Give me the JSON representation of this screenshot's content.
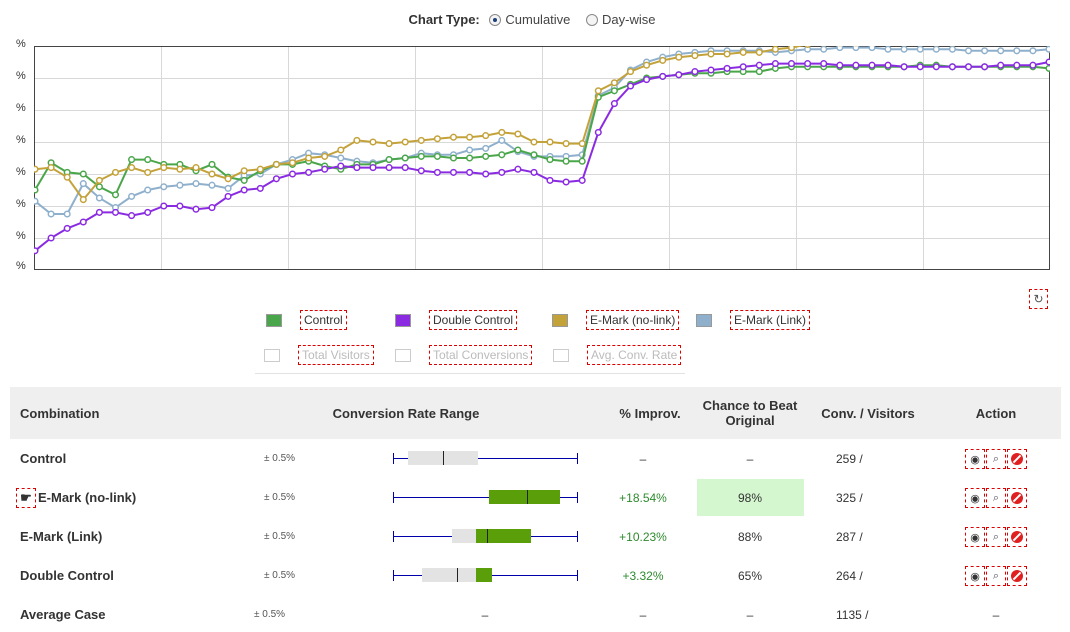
{
  "chart_type": {
    "label": "Chart Type:",
    "options": [
      {
        "label": "Cumulative",
        "selected": true
      },
      {
        "label": "Day-wise",
        "selected": false
      }
    ]
  },
  "chart_data": {
    "type": "line",
    "y_tick_labels": [
      "%",
      "%",
      "%",
      "%",
      "%",
      "%",
      "%",
      "%"
    ],
    "ylim": [
      0,
      7
    ],
    "grid": true,
    "series": [
      {
        "name": "Control",
        "color": "#4aa64a",
        "values": [
          2.5,
          3.35,
          3.05,
          3.0,
          2.6,
          2.35,
          3.45,
          3.45,
          3.3,
          3.3,
          3.1,
          3.3,
          2.9,
          2.8,
          3.1,
          3.3,
          3.3,
          3.4,
          3.25,
          3.15,
          3.3,
          3.3,
          3.45,
          3.5,
          3.55,
          3.55,
          3.5,
          3.5,
          3.55,
          3.6,
          3.75,
          3.6,
          3.45,
          3.4,
          3.4,
          5.4,
          5.6,
          5.8,
          6.0,
          6.05,
          6.1,
          6.15,
          6.15,
          6.2,
          6.2,
          6.2,
          6.3,
          6.35,
          6.35,
          6.35,
          6.35,
          6.35,
          6.35,
          6.35,
          6.35,
          6.4,
          6.4,
          6.35,
          6.35,
          6.35,
          6.35,
          6.35,
          6.35,
          6.3
        ]
      },
      {
        "name": "Double Control",
        "color": "#8a2be2",
        "values": [
          0.6,
          1.0,
          1.3,
          1.5,
          1.8,
          1.8,
          1.7,
          1.8,
          2.0,
          2.0,
          1.9,
          1.95,
          2.3,
          2.5,
          2.55,
          2.85,
          3.0,
          3.05,
          3.15,
          3.25,
          3.2,
          3.2,
          3.2,
          3.2,
          3.1,
          3.05,
          3.05,
          3.05,
          3.0,
          3.05,
          3.15,
          3.05,
          2.8,
          2.75,
          2.8,
          4.3,
          5.2,
          5.75,
          5.95,
          6.05,
          6.1,
          6.2,
          6.25,
          6.3,
          6.35,
          6.4,
          6.45,
          6.45,
          6.45,
          6.45,
          6.4,
          6.4,
          6.4,
          6.4,
          6.35,
          6.35,
          6.35,
          6.35,
          6.35,
          6.35,
          6.4,
          6.4,
          6.4,
          6.5
        ]
      },
      {
        "name": "E-Mark (no-link)",
        "color": "#c4a23a",
        "values": [
          3.15,
          3.2,
          2.9,
          2.2,
          2.8,
          3.05,
          3.2,
          3.05,
          3.2,
          3.15,
          3.2,
          3.0,
          2.85,
          3.1,
          3.15,
          3.3,
          3.35,
          3.5,
          3.55,
          3.75,
          4.05,
          4.0,
          3.95,
          4.0,
          4.05,
          4.1,
          4.15,
          4.15,
          4.2,
          4.3,
          4.25,
          4.0,
          4.0,
          3.95,
          3.95,
          5.6,
          5.85,
          6.2,
          6.4,
          6.55,
          6.65,
          6.7,
          6.75,
          6.75,
          6.8,
          6.8,
          6.9,
          6.95,
          7.05,
          7.1,
          7.1,
          7.1,
          7.15,
          7.15,
          7.15,
          7.15,
          7.1,
          7.1,
          7.1,
          7.1,
          7.15,
          7.15,
          7.15,
          7.2
        ]
      },
      {
        "name": "E-Mark (Link)",
        "color": "#8fb0cc",
        "values": [
          2.15,
          1.75,
          1.75,
          2.7,
          2.25,
          1.95,
          2.3,
          2.5,
          2.6,
          2.65,
          2.7,
          2.65,
          2.55,
          2.95,
          3.0,
          3.3,
          3.45,
          3.65,
          3.6,
          3.5,
          3.4,
          3.35,
          3.45,
          3.5,
          3.65,
          3.6,
          3.6,
          3.75,
          3.8,
          4.05,
          3.7,
          3.55,
          3.55,
          3.55,
          3.6,
          5.45,
          5.7,
          6.25,
          6.5,
          6.65,
          6.75,
          6.8,
          6.85,
          6.85,
          6.85,
          6.85,
          6.8,
          6.85,
          6.9,
          6.9,
          6.95,
          6.95,
          6.95,
          6.9,
          6.9,
          6.9,
          6.9,
          6.9,
          6.85,
          6.85,
          6.85,
          6.85,
          6.85,
          6.9
        ]
      }
    ]
  },
  "legend": {
    "series": [
      {
        "label": "Control",
        "color": "#4aa64a"
      },
      {
        "label": "Double Control",
        "color": "#8a2be2"
      },
      {
        "label": "E-Mark (no-link)",
        "color": "#c4a23a"
      },
      {
        "label": "E-Mark (Link)",
        "color": "#8fb0cc"
      }
    ],
    "metrics": [
      {
        "label": "Total Visitors"
      },
      {
        "label": "Total Conversions"
      },
      {
        "label": "Avg. Conv. Rate"
      }
    ]
  },
  "table": {
    "headers": {
      "combination": "Combination",
      "range": "Conversion Rate Range",
      "improvement": "% Improv.",
      "chance": "Chance to Beat Original",
      "conv": "Conv. / Visitors",
      "action": "Action"
    },
    "rows": [
      {
        "name": "Control",
        "error": "± 0.5%",
        "improvement": "–",
        "chance": "–",
        "conv": "259 /",
        "range": {
          "low": 0.0,
          "box_low": 0.08,
          "mid": 0.27,
          "box_high": 0.46,
          "high": 1.0,
          "box_color": "#e3e3e3",
          "highlight_low": null,
          "highlight_high": null
        }
      },
      {
        "name": "E-Mark (no-link)",
        "error": "± 0.5%",
        "improvement": "+18.54%",
        "chance": "98%",
        "conv": "325 /",
        "range": {
          "low": 0.0,
          "box_low": 0.52,
          "mid": 0.73,
          "box_high": 0.91,
          "high": 1.0,
          "box_color": "#5a9e0a",
          "highlight_low": null,
          "highlight_high": null
        }
      },
      {
        "name": "E-Mark (Link)",
        "error": "± 0.5%",
        "improvement": "+10.23%",
        "chance": "88%",
        "conv": "287 /",
        "range": {
          "low": 0.0,
          "box_low": 0.32,
          "mid": 0.51,
          "box_high": 0.75,
          "high": 1.0,
          "box_color": "#e3e3e3",
          "highlight_low": 0.45,
          "highlight_high": 0.75
        }
      },
      {
        "name": "Double Control",
        "error": "± 0.5%",
        "improvement": "+3.32%",
        "chance": "65%",
        "conv": "264 /",
        "range": {
          "low": 0.0,
          "box_low": 0.16,
          "mid": 0.35,
          "box_high": 0.54,
          "high": 1.0,
          "box_color": "#e3e3e3",
          "highlight_low": 0.45,
          "highlight_high": 0.54
        }
      },
      {
        "name": "Average Case",
        "error": "± 0.5%",
        "improvement": "–",
        "chance": "–",
        "conv": "1135 /",
        "range_text": "–",
        "action_text": "–"
      }
    ]
  }
}
